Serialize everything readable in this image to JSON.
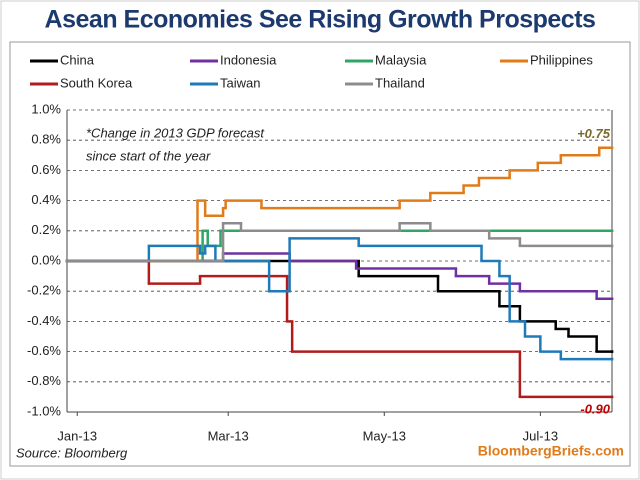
{
  "chart_data": {
    "type": "step-line",
    "title": "Asean Economies See Rising Growth Prospects",
    "note": [
      "*Change in 2013 GDP forecast",
      "since start of the year"
    ],
    "source": "Source: Bloomberg",
    "credit": "BloombergBriefs.com",
    "grid": true,
    "xlim": [
      -4,
      209
    ],
    "xticks": [
      {
        "value": 0,
        "label": "Jan-13"
      },
      {
        "value": 59,
        "label": "Mar-13"
      },
      {
        "value": 120,
        "label": "May-13"
      },
      {
        "value": 181,
        "label": "Jul-13"
      }
    ],
    "ylim": [
      -1.0,
      1.0
    ],
    "yticks": [
      {
        "value": 1.0,
        "label": "1.0%"
      },
      {
        "value": 0.8,
        "label": "0.8%"
      },
      {
        "value": 0.6,
        "label": "0.6%"
      },
      {
        "value": 0.4,
        "label": "0.4%"
      },
      {
        "value": 0.2,
        "label": "0.2%"
      },
      {
        "value": 0.0,
        "label": "0.0%"
      },
      {
        "value": -0.2,
        "label": "-0.2%"
      },
      {
        "value": -0.4,
        "label": "-0.4%"
      },
      {
        "value": -0.6,
        "label": "-0.6%"
      },
      {
        "value": -0.8,
        "label": "-0.8%"
      },
      {
        "value": -1.0,
        "label": "-1.0%"
      }
    ],
    "series": [
      {
        "name": "China",
        "color": "#000000",
        "x": [
          -4,
          110,
          141,
          165,
          173,
          187,
          192,
          203,
          209
        ],
        "values": [
          0,
          -0.1,
          -0.2,
          -0.3,
          -0.4,
          -0.45,
          -0.5,
          -0.6,
          -0.6
        ]
      },
      {
        "name": "Indonesia",
        "color": "#7030a0",
        "x": [
          -4,
          57,
          83,
          109,
          148,
          161,
          173,
          203,
          209
        ],
        "values": [
          0,
          0.05,
          0,
          -0.05,
          -0.1,
          -0.15,
          -0.2,
          -0.25,
          -0.25
        ]
      },
      {
        "name": "Malaysia",
        "color": "#2fa566",
        "x": [
          -4,
          49,
          51,
          56,
          209
        ],
        "values": [
          0,
          0.2,
          0.1,
          0.2,
          0.2
        ]
      },
      {
        "name": "Philippines",
        "color": "#e07b1a",
        "x": [
          -4,
          47,
          50,
          57,
          58,
          72,
          126,
          138,
          151,
          157,
          169,
          180,
          189,
          204,
          209
        ],
        "values": [
          0,
          0.4,
          0.3,
          0.35,
          0.4,
          0.35,
          0.4,
          0.45,
          0.5,
          0.55,
          0.6,
          0.65,
          0.7,
          0.75,
          0.75
        ]
      },
      {
        "name": "South Korea",
        "color": "#b01c1c",
        "x": [
          -4,
          28,
          48,
          82,
          84,
          173,
          209
        ],
        "values": [
          0,
          -0.15,
          -0.1,
          -0.4,
          -0.6,
          -0.9,
          -0.9
        ]
      },
      {
        "name": "Taiwan",
        "color": "#1f7ab8",
        "x": [
          -4,
          28,
          48,
          50,
          54,
          75,
          83,
          110,
          158,
          165,
          169,
          175,
          181,
          189,
          209
        ],
        "values": [
          0,
          0.1,
          0.05,
          0.1,
          0,
          -0.2,
          0.15,
          0.1,
          0,
          -0.1,
          -0.4,
          -0.5,
          -0.6,
          -0.65,
          -0.65
        ]
      },
      {
        "name": "Thailand",
        "color": "#8c8c8c",
        "x": [
          -4,
          57,
          64,
          126,
          138,
          161,
          173,
          209
        ],
        "values": [
          0,
          0.25,
          0.2,
          0.25,
          0.2,
          0.15,
          0.1,
          0.1
        ]
      }
    ],
    "annotations": [
      {
        "text": "+0.75",
        "value": 0.75,
        "color": "#7a6a2a"
      },
      {
        "text": "-0.90",
        "value": -0.9,
        "color": "#c00000"
      }
    ]
  }
}
